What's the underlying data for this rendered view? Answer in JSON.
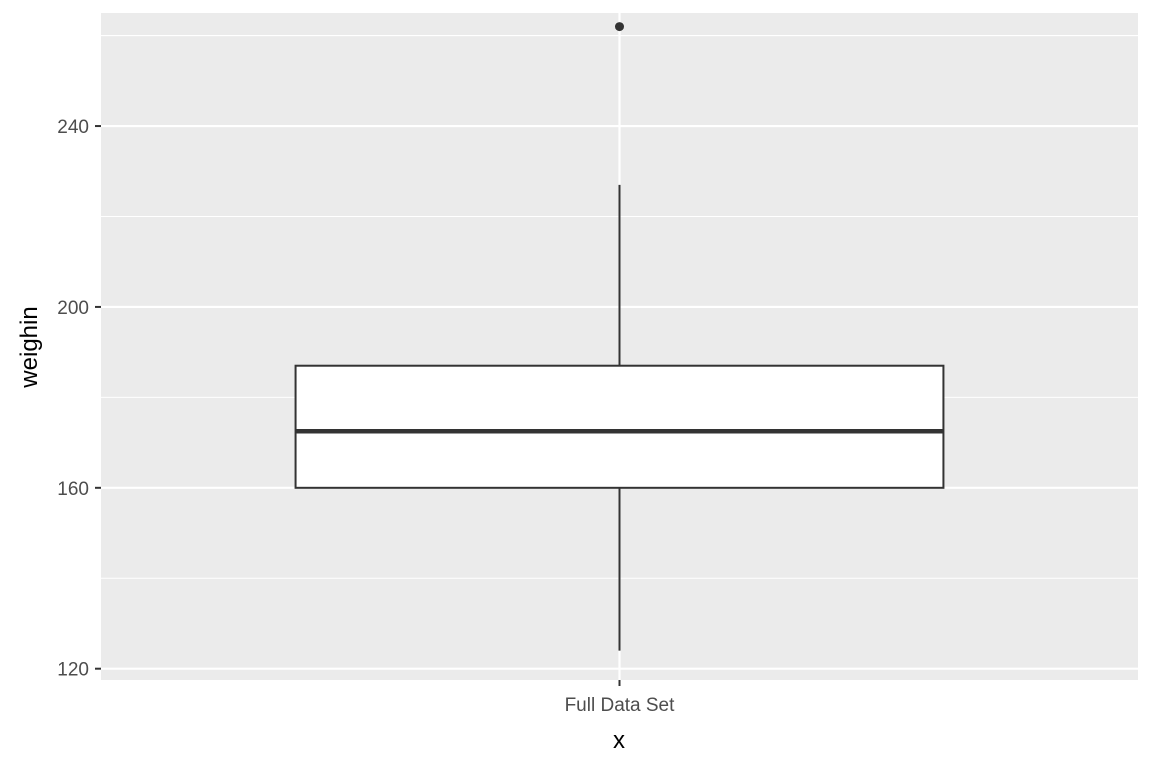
{
  "chart_data": {
    "type": "box",
    "xlabel": "x",
    "ylabel": "weighin",
    "categories": [
      "Full Data Set"
    ],
    "ylim": [
      117.5,
      265
    ],
    "yticks": [
      120,
      160,
      200,
      240
    ],
    "yticks_minor": [
      140,
      180,
      220,
      260
    ],
    "boxes": [
      {
        "category": "Full Data Set",
        "whisker_low": 124,
        "q1": 160,
        "median": 172.5,
        "q3": 187,
        "whisker_high": 227,
        "outliers": [
          262
        ]
      }
    ],
    "grid": true
  },
  "colors": {
    "panel": "#ebebeb",
    "grid": "#ffffff",
    "box_fill": "#ffffff",
    "box_stroke": "#333333",
    "tick_text": "#4d4d4d",
    "title_text": "#000000"
  }
}
